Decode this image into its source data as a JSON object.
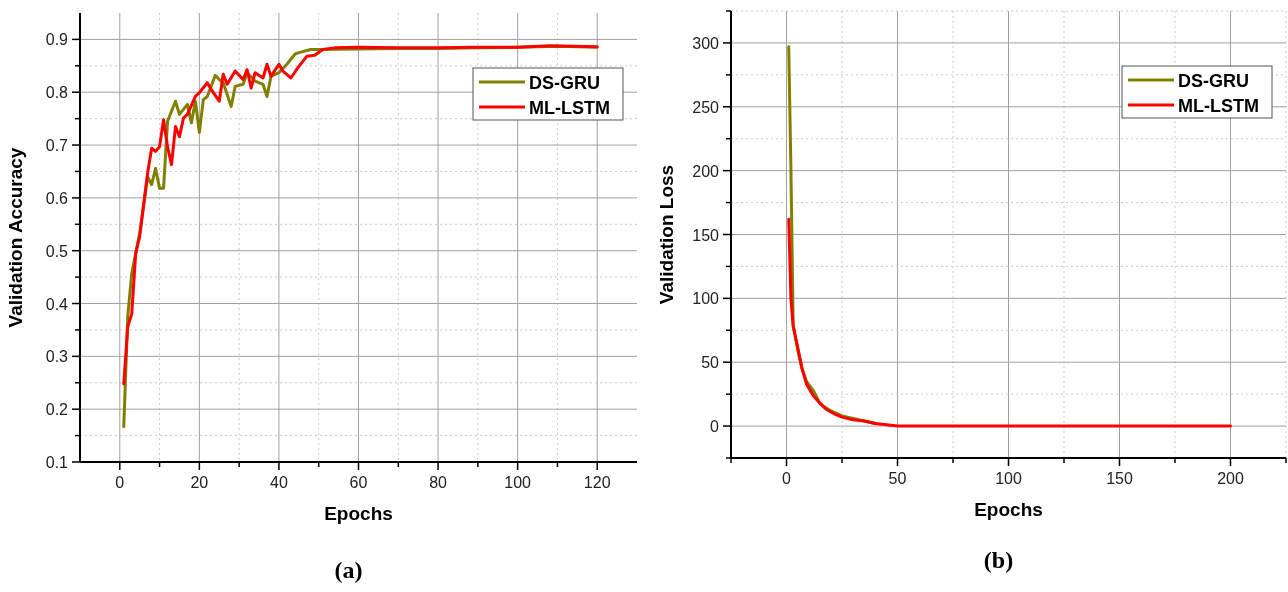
{
  "chart_data": [
    {
      "type": "line",
      "title": "(a)",
      "xlabel": "Epochs",
      "ylabel": "Validation Accuracy",
      "xlim": [
        -10,
        130
      ],
      "ylim": [
        0.1,
        0.95
      ],
      "xticks": [
        0,
        {
          "value": 10,
          "label": null
        },
        20,
        {
          "value": 30,
          "label": null
        },
        40,
        {
          "value": 50,
          "label": null
        },
        60,
        {
          "value": 70,
          "label": null
        },
        80,
        {
          "value": 90,
          "label": null
        },
        100,
        {
          "value": 110,
          "label": null
        },
        120
      ],
      "yticks": [
        0.1,
        {
          "value": 0.15,
          "label": null
        },
        0.2,
        {
          "value": 0.25,
          "label": null
        },
        0.3,
        {
          "value": 0.35,
          "label": null
        },
        0.4,
        {
          "value": 0.45,
          "label": null
        },
        0.5,
        {
          "value": 0.55,
          "label": null
        },
        0.6,
        {
          "value": 0.65,
          "label": null
        },
        0.7,
        {
          "value": 0.75,
          "label": null
        },
        0.8,
        {
          "value": 0.85,
          "label": null
        },
        0.9
      ],
      "grid": true,
      "legend": "top right",
      "line_style": "solid",
      "series": [
        {
          "name": "DS-GRU",
          "color": "#808000",
          "x": [
            1,
            2,
            3,
            4,
            5,
            7,
            8,
            9,
            10,
            11,
            12,
            14,
            15,
            17,
            18,
            19,
            20,
            21,
            22,
            24,
            25,
            26,
            28,
            29,
            31,
            32,
            34,
            36,
            37,
            38,
            40,
            42,
            44,
            45,
            48,
            50,
            60,
            70,
            80,
            90,
            100,
            110,
            120
          ],
          "values": [
            0.167,
            0.375,
            0.457,
            0.495,
            0.533,
            0.64,
            0.625,
            0.656,
            0.618,
            0.618,
            0.745,
            0.783,
            0.758,
            0.777,
            0.742,
            0.783,
            0.724,
            0.786,
            0.792,
            0.832,
            0.824,
            0.818,
            0.773,
            0.811,
            0.815,
            0.837,
            0.821,
            0.815,
            0.792,
            0.83,
            0.837,
            0.853,
            0.872,
            0.875,
            0.881,
            0.881,
            0.882,
            0.883,
            0.883,
            0.884,
            0.885,
            0.887,
            0.885
          ]
        },
        {
          "name": "ML-LSTM",
          "color": "#ff0000",
          "x": [
            1,
            2,
            3,
            4,
            5,
            7,
            8,
            9,
            10,
            11,
            12,
            13,
            14,
            15,
            16,
            17,
            19,
            20,
            22,
            23,
            25,
            26,
            27,
            29,
            31,
            32,
            33,
            34,
            36,
            37,
            38,
            40,
            41,
            43,
            45,
            47,
            49,
            51,
            54,
            60,
            70,
            80,
            90,
            100,
            108,
            120
          ],
          "values": [
            0.248,
            0.356,
            0.38,
            0.495,
            0.527,
            0.647,
            0.694,
            0.688,
            0.697,
            0.748,
            0.697,
            0.663,
            0.735,
            0.716,
            0.751,
            0.758,
            0.792,
            0.799,
            0.818,
            0.805,
            0.783,
            0.834,
            0.815,
            0.84,
            0.824,
            0.843,
            0.808,
            0.837,
            0.827,
            0.853,
            0.83,
            0.853,
            0.84,
            0.827,
            0.849,
            0.868,
            0.87,
            0.881,
            0.884,
            0.885,
            0.884,
            0.884,
            0.885,
            0.885,
            0.888,
            0.886
          ]
        }
      ]
    },
    {
      "type": "line",
      "title": "(b)",
      "xlabel": "Epochs",
      "ylabel": "Validation Loss",
      "xlim": [
        -25,
        225
      ],
      "ylim": [
        -25,
        325
      ],
      "xticks": [
        {
          "value": -25,
          "label": null
        },
        0,
        {
          "value": 25,
          "label": null
        },
        50,
        {
          "value": 75,
          "label": null
        },
        100,
        {
          "value": 125,
          "label": null
        },
        150,
        {
          "value": 175,
          "label": null
        },
        200,
        {
          "value": 225,
          "label": null
        }
      ],
      "yticks": [
        {
          "value": -25,
          "label": null
        },
        0,
        {
          "value": 25,
          "label": null
        },
        50,
        {
          "value": 75,
          "label": null
        },
        100,
        {
          "value": 125,
          "label": null
        },
        150,
        {
          "value": 175,
          "label": null
        },
        200,
        {
          "value": 225,
          "label": null
        },
        250,
        {
          "value": 275,
          "label": null
        },
        300,
        {
          "value": 325,
          "label": null
        }
      ],
      "grid": true,
      "legend": "top right",
      "line_style": "solid",
      "series": [
        {
          "name": "DS-GRU",
          "color": "#808000",
          "x": [
            1,
            2,
            3,
            5,
            7,
            9,
            12,
            15,
            17,
            20,
            25,
            30,
            35,
            40
          ],
          "values": [
            297,
            200,
            80,
            60,
            45,
            35,
            28,
            18,
            15,
            12,
            8,
            6,
            4,
            2
          ]
        },
        {
          "name": "ML-LSTM",
          "color": "#ff0000",
          "x": [
            1,
            2,
            3,
            5,
            7,
            9,
            12,
            15,
            18,
            21,
            25,
            30,
            35,
            40,
            45,
            50,
            100,
            150,
            200
          ],
          "values": [
            162,
            100,
            78,
            62,
            45,
            33,
            24,
            18,
            13,
            10,
            7,
            5,
            4,
            2,
            1,
            0,
            0,
            0,
            0
          ]
        }
      ]
    }
  ]
}
